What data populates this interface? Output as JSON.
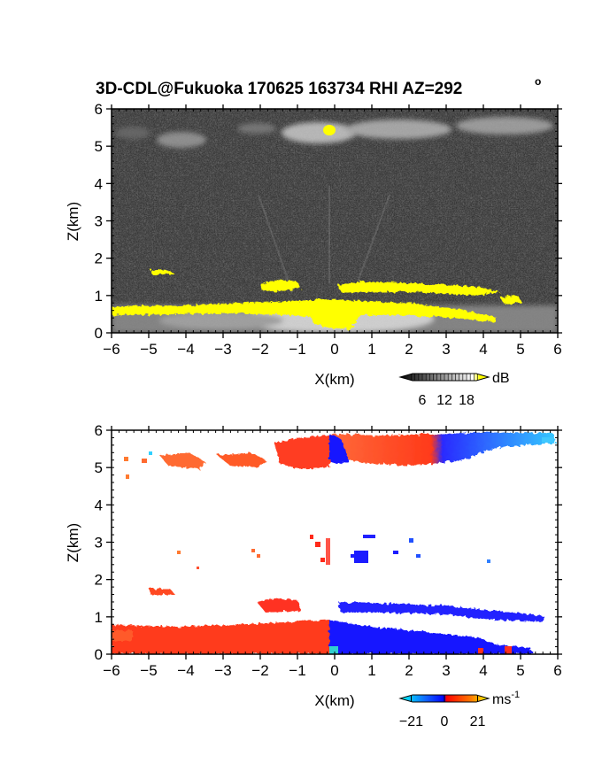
{
  "title": "3D-CDL@Fukuoka 170625 163734 RHI AZ=292",
  "title_degree": "o",
  "chart_data": [
    {
      "type": "heatmap",
      "panel": "reflectivity",
      "xlabel": "X(km)",
      "ylabel": "Z(km)",
      "xlim": [
        -6,
        6
      ],
      "ylim": [
        0,
        6
      ],
      "xticks": [
        -6,
        -5,
        -4,
        -3,
        -2,
        -1,
        0,
        1,
        2,
        3,
        4,
        5,
        6
      ],
      "yticks": [
        0,
        1,
        2,
        3,
        4,
        5,
        6
      ],
      "colorbar": {
        "unit": "dB",
        "ticks": [
          6,
          12,
          18
        ],
        "colors": [
          "#000000",
          "#ffffff",
          "#ffff00"
        ]
      },
      "features": [
        {
          "label": "cloud layer",
          "x": [
            -6,
            6
          ],
          "z": [
            5,
            5.8
          ],
          "value": "bright grey"
        },
        {
          "label": "near-ground layer",
          "x": [
            -6,
            6
          ],
          "z": [
            0,
            0.7
          ],
          "value": ">18 dB (yellow) to bright grey"
        },
        {
          "label": "elevated layer",
          "x": [
            -2,
            4.5
          ],
          "z": [
            1,
            1.3
          ],
          "value": ">18 dB (yellow)"
        }
      ]
    },
    {
      "type": "heatmap",
      "panel": "doppler velocity",
      "xlabel": "X(km)",
      "ylabel": "Z(km)",
      "xlim": [
        -6,
        6
      ],
      "ylim": [
        0,
        6
      ],
      "xticks": [
        -6,
        -5,
        -4,
        -3,
        -2,
        -1,
        0,
        1,
        2,
        3,
        4,
        5,
        6
      ],
      "yticks": [
        0,
        1,
        2,
        3,
        4,
        5,
        6
      ],
      "colorbar": {
        "unit": "ms",
        "unit_exponent": "-1",
        "ticks": [
          -21,
          0,
          21
        ],
        "colors": [
          "#00ffff",
          "#0000ff",
          "#ff0000",
          "#ffff00"
        ]
      },
      "features": [
        {
          "label": "upper layer",
          "x": [
            -6,
            6
          ],
          "z": [
            5,
            5.9
          ],
          "value": "positive (red/orange) for x<0, negative (blue/cyan) for x>0"
        },
        {
          "label": "elevated layer",
          "x": [
            -5,
            5.8
          ],
          "z": [
            1,
            1.4
          ],
          "value": "positive for x<0, negative for x>0"
        },
        {
          "label": "near-ground layer",
          "x": [
            -6,
            5
          ],
          "z": [
            0,
            0.8
          ],
          "value": "positive for x<0, negative for x>0"
        }
      ]
    }
  ]
}
